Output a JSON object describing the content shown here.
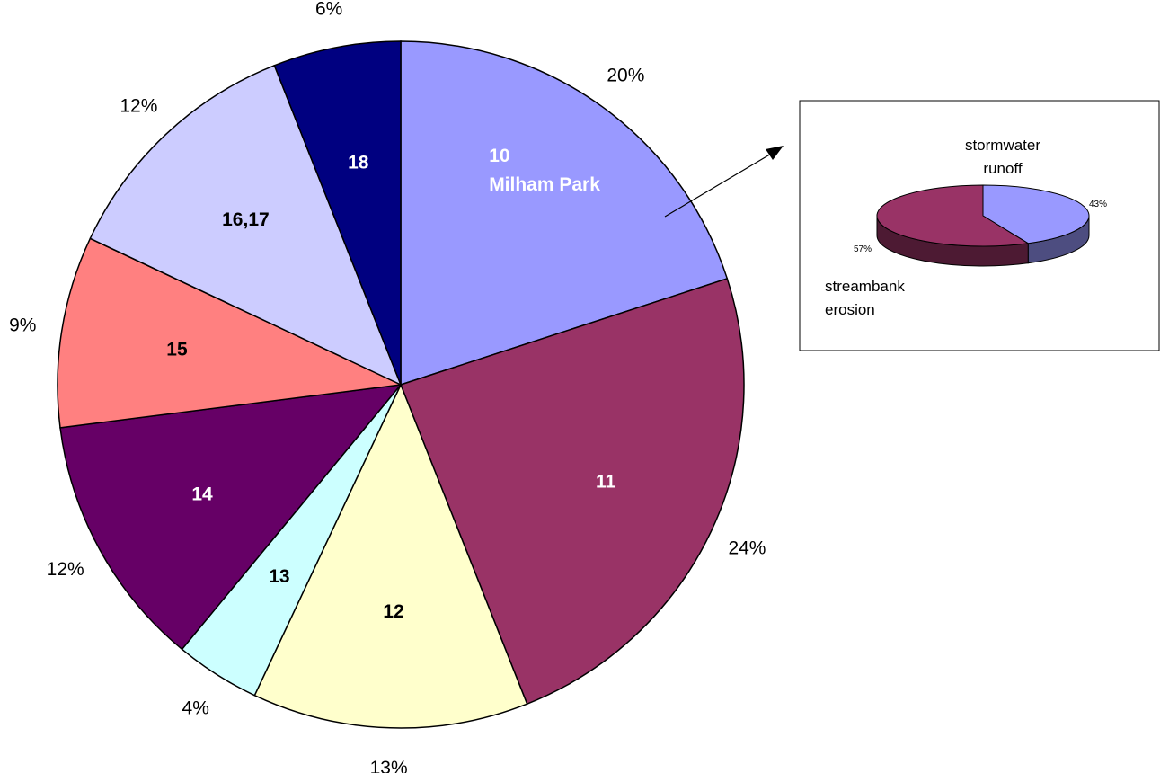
{
  "chart_data": [
    {
      "type": "pie",
      "slices": [
        {
          "label": "10",
          "sublabel": "Milham Park",
          "value": 20,
          "value_label": "20%",
          "color": "#9999FF",
          "label_color": "#FFFFFF"
        },
        {
          "label": "11",
          "sublabel": "",
          "value": 24,
          "value_label": "24%",
          "color": "#993366",
          "label_color": "#FFFFFF"
        },
        {
          "label": "12",
          "sublabel": "",
          "value": 13,
          "value_label": "13%",
          "color": "#FFFFCC",
          "label_color": "#000000"
        },
        {
          "label": "13",
          "sublabel": "",
          "value": 4,
          "value_label": "4%",
          "color": "#CCFFFF",
          "label_color": "#000000"
        },
        {
          "label": "14",
          "sublabel": "",
          "value": 12,
          "value_label": "12%",
          "color": "#660066",
          "label_color": "#FFFFFF"
        },
        {
          "label": "15",
          "sublabel": "",
          "value": 9,
          "value_label": "9%",
          "color": "#FF8080",
          "label_color": "#000000"
        },
        {
          "label": "16,17",
          "sublabel": "",
          "value": 12,
          "value_label": "12%",
          "color": "#CCCCFF",
          "label_color": "#000000"
        },
        {
          "label": "18",
          "sublabel": "",
          "value": 6,
          "value_label": "6%",
          "color": "#000080",
          "label_color": "#FFFFFF"
        }
      ],
      "start_angle_deg": 0,
      "direction": "clockwise"
    },
    {
      "type": "pie",
      "style": "3d",
      "slices": [
        {
          "label": "stormwater runoff",
          "value": 43,
          "value_label": "43%",
          "color": "#9999FF",
          "side_color": "#4D4D80"
        },
        {
          "label": "streambank erosion",
          "value": 57,
          "value_label": "57%",
          "color": "#993366",
          "side_color": "#4D1A33"
        }
      ]
    }
  ]
}
